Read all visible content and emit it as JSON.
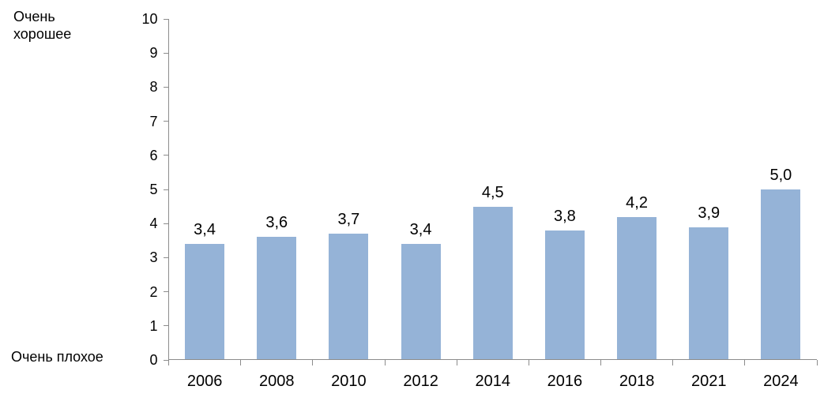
{
  "chart_data": {
    "type": "bar",
    "categories": [
      "2006",
      "2008",
      "2010",
      "2012",
      "2014",
      "2016",
      "2018",
      "2021",
      "2024"
    ],
    "values": [
      3.4,
      3.6,
      3.7,
      3.4,
      4.5,
      3.8,
      4.2,
      3.9,
      5.0
    ],
    "value_labels": [
      "3,4",
      "3,6",
      "3,7",
      "3,4",
      "4,5",
      "3,8",
      "4,2",
      "3,9",
      "5,0"
    ],
    "title": "",
    "xlabel": "",
    "ylabel": "",
    "y_axis_top_label": "Очень хорошее",
    "y_axis_bottom_label": "Очень плохое",
    "ylim": [
      0,
      10
    ],
    "ytick_step": 1,
    "ytick_labels": [
      "0",
      "1",
      "2",
      "3",
      "4",
      "5",
      "6",
      "7",
      "8",
      "9",
      "10"
    ],
    "grid": false,
    "legend": "none",
    "bar_color": "#95b3d7",
    "axis_color": "#8c8c8c",
    "text_color": "#000000"
  }
}
